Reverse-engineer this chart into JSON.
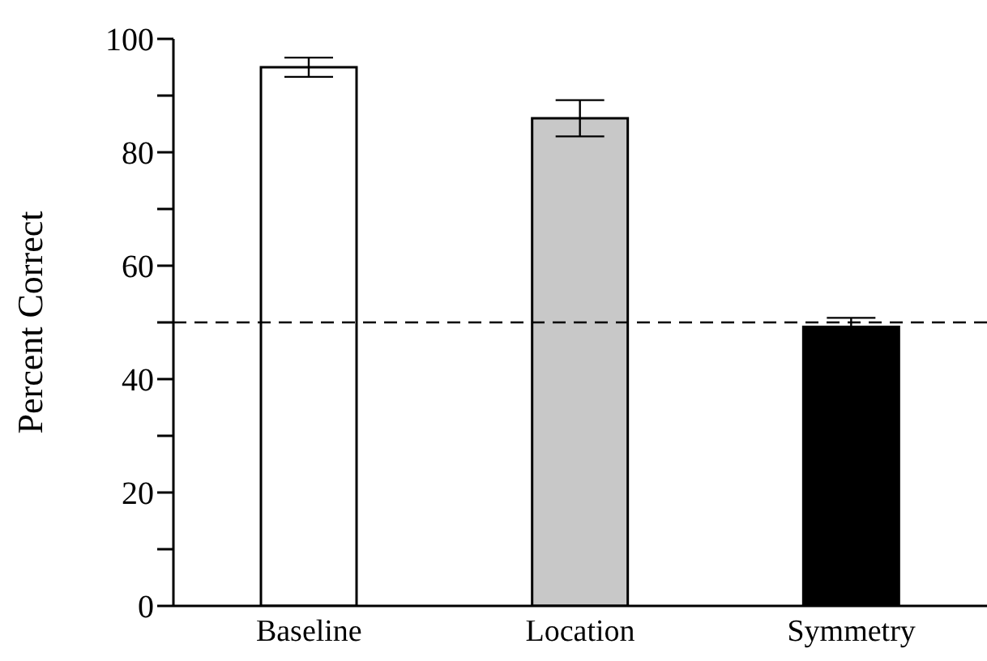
{
  "chart_data": {
    "type": "bar",
    "ylabel": "Percent Correct",
    "categories": [
      "Baseline",
      "Location",
      "Symmetry"
    ],
    "values": [
      95,
      86,
      49.2
    ],
    "colors": [
      "#ffffff",
      "#c8c8c8",
      "#000000"
    ],
    "errors": [
      1.7,
      3.2,
      1.6
    ],
    "ylim": [
      0,
      100
    ],
    "yticks": [
      0,
      {
        "value": 10,
        "label": null
      },
      20,
      {
        "value": 30,
        "label": null
      },
      40,
      {
        "value": 50,
        "label": null
      },
      60,
      {
        "value": 70,
        "label": null
      },
      80,
      {
        "value": 90,
        "label": null
      },
      100
    ],
    "ref_lines": [
      {
        "axis": "y",
        "value": 50,
        "line_style": "dashed",
        "color": "#000000"
      }
    ]
  }
}
